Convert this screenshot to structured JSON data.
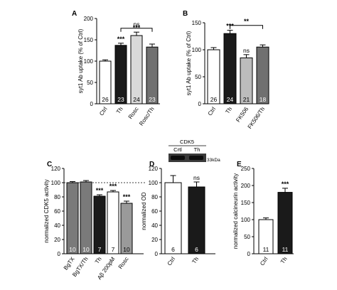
{
  "chart_data": [
    {
      "panel": "A",
      "type": "bar",
      "ylabel": "syt1 Ab uptake (% of Ctrl)",
      "ylim": [
        0,
        200
      ],
      "yticks": [
        0,
        50,
        100,
        150,
        200
      ],
      "categories": [
        "Ctrl",
        "Th",
        "Rosc",
        "Rosc/Th"
      ],
      "values": [
        100,
        137,
        160,
        133
      ],
      "errors": [
        3,
        5,
        8,
        7
      ],
      "n": [
        "26",
        "23",
        "24",
        "23"
      ],
      "fills": [
        "#ffffff",
        "#1a1a1a",
        "#d9d9d9",
        "#707070"
      ],
      "sig": [
        "",
        "***",
        "***",
        ""
      ],
      "brackets": [
        {
          "from": 1,
          "to": 3,
          "y": 177,
          "label": "ns"
        }
      ]
    },
    {
      "panel": "B",
      "type": "bar",
      "ylabel": "syt1 Ab uptake (% of Ctrl)",
      "ylim": [
        0,
        150
      ],
      "yticks": [
        0,
        50,
        100,
        150
      ],
      "categories": [
        "Ctrl",
        "Th",
        "FK506",
        "FK506/Th"
      ],
      "values": [
        100,
        130,
        85,
        105
      ],
      "errors": [
        4,
        6,
        6,
        4
      ],
      "n": [
        "26",
        "24",
        "21",
        "18"
      ],
      "fills": [
        "#ffffff",
        "#1a1a1a",
        "#bcbcbc",
        "#707070"
      ],
      "sig": [
        "",
        "***",
        "ns",
        ""
      ],
      "brackets": [
        {
          "from": 1,
          "to": 3,
          "y": 145,
          "label": "**"
        }
      ]
    },
    {
      "panel": "C",
      "type": "bar",
      "ylabel": "normalized CDK5 activity",
      "ylim": [
        0,
        120
      ],
      "yticks": [
        0,
        20,
        40,
        60,
        80,
        100,
        120
      ],
      "categories": [
        "BgTX",
        "BgTX/Th",
        "Th",
        "Aβ 200pM",
        "Rosc"
      ],
      "values": [
        100,
        101,
        81,
        87,
        71
      ],
      "errors": [
        1.5,
        2,
        2,
        2,
        3
      ],
      "n": [
        "10",
        "10",
        "7",
        "7",
        "10"
      ],
      "fills": [
        "#7a7a7a",
        "#7a7a7a",
        "#1a1a1a",
        "#ffffff",
        "#9a9a9a"
      ],
      "sig": [
        "",
        "",
        "***",
        "***",
        "***"
      ],
      "reference_line": 100
    },
    {
      "panel": "D",
      "type": "bar",
      "ylabel": "normalized OD",
      "ylim": [
        0,
        120
      ],
      "yticks": [
        0,
        20,
        40,
        60,
        80,
        100,
        120
      ],
      "categories": [
        "Ctrl",
        "Th"
      ],
      "values": [
        100,
        94
      ],
      "errors": [
        10,
        7
      ],
      "n": [
        "6",
        "6"
      ],
      "fills": [
        "#ffffff",
        "#1a1a1a"
      ],
      "sig": [
        "",
        "ns"
      ],
      "blot": {
        "title": "CDK5",
        "lanes": [
          "Crtl",
          "Th"
        ],
        "size": "33kDa"
      }
    },
    {
      "panel": "E",
      "type": "bar",
      "ylabel": "normalized calcineurin activity",
      "ylim": [
        0,
        250
      ],
      "yticks": [
        0,
        50,
        100,
        150,
        200,
        250
      ],
      "categories": [
        "Ctrl",
        "Th"
      ],
      "values": [
        100,
        180
      ],
      "errors": [
        5,
        12
      ],
      "n": [
        "11",
        "11"
      ],
      "fills": [
        "#ffffff",
        "#1a1a1a"
      ],
      "sig": [
        "",
        "***"
      ]
    }
  ]
}
